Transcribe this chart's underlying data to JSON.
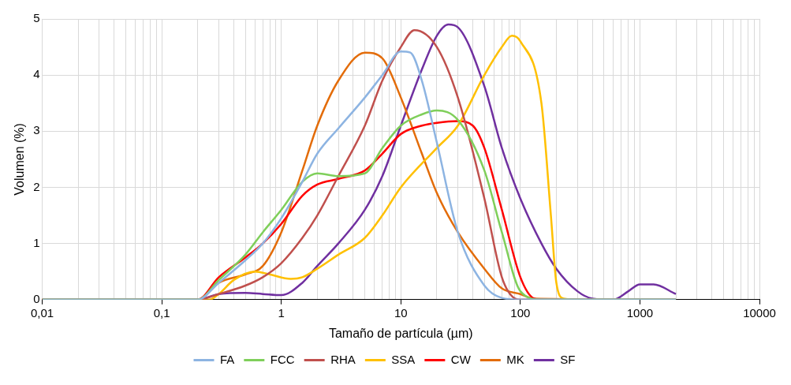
{
  "chart_data": {
    "type": "line",
    "xlabel": "Tamaño de partícula (µm)",
    "ylabel": "Volumen (%)",
    "log": "x",
    "xlim": [
      0.01,
      10000
    ],
    "xticks": [
      {
        "value": 0.01,
        "label": "0,01"
      },
      {
        "value": 0.02,
        "label": null
      },
      {
        "value": 0.03,
        "label": null
      },
      {
        "value": 0.04,
        "label": null
      },
      {
        "value": 0.05,
        "label": null
      },
      {
        "value": 0.06,
        "label": null
      },
      {
        "value": 0.07,
        "label": null
      },
      {
        "value": 0.08,
        "label": null
      },
      {
        "value": 0.09,
        "label": null
      },
      {
        "value": 0.1,
        "label": "0,1"
      },
      {
        "value": 0.2,
        "label": null
      },
      {
        "value": 0.3,
        "label": null
      },
      {
        "value": 0.4,
        "label": null
      },
      {
        "value": 0.5,
        "label": null
      },
      {
        "value": 0.6,
        "label": null
      },
      {
        "value": 0.7,
        "label": null
      },
      {
        "value": 0.8,
        "label": null
      },
      {
        "value": 0.9,
        "label": null
      },
      1,
      {
        "value": 2,
        "label": null
      },
      {
        "value": 3,
        "label": null
      },
      {
        "value": 4,
        "label": null
      },
      {
        "value": 5,
        "label": null
      },
      {
        "value": 6,
        "label": null
      },
      {
        "value": 7,
        "label": null
      },
      {
        "value": 8,
        "label": null
      },
      {
        "value": 9,
        "label": null
      },
      10,
      {
        "value": 20,
        "label": null
      },
      {
        "value": 30,
        "label": null
      },
      {
        "value": 40,
        "label": null
      },
      {
        "value": 50,
        "label": null
      },
      {
        "value": 60,
        "label": null
      },
      {
        "value": 70,
        "label": null
      },
      {
        "value": 80,
        "label": null
      },
      {
        "value": 90,
        "label": null
      },
      100,
      {
        "value": 200,
        "label": null
      },
      {
        "value": 300,
        "label": null
      },
      {
        "value": 400,
        "label": null
      },
      {
        "value": 500,
        "label": null
      },
      {
        "value": 600,
        "label": null
      },
      {
        "value": 700,
        "label": null
      },
      {
        "value": 800,
        "label": null
      },
      {
        "value": 900,
        "label": null
      },
      1000,
      {
        "value": 2000,
        "label": null
      },
      {
        "value": 3000,
        "label": null
      },
      {
        "value": 4000,
        "label": null
      },
      {
        "value": 5000,
        "label": null
      },
      {
        "value": 6000,
        "label": null
      },
      {
        "value": 7000,
        "label": null
      },
      {
        "value": 8000,
        "label": null
      },
      {
        "value": 9000,
        "label": null
      },
      10000
    ],
    "ylim": [
      0,
      5
    ],
    "yticks": [
      0,
      1,
      2,
      3,
      4,
      5
    ],
    "grid": true,
    "legend": "bottom",
    "marker": "none",
    "line_style": "solid",
    "series": [
      {
        "name": "FA",
        "color": "#8db4e2",
        "x": [
          0.01,
          0.2,
          0.3,
          0.5,
          0.7,
          1,
          1.5,
          2,
          3,
          5,
          7,
          10,
          12,
          15,
          20,
          30,
          50,
          70,
          100,
          2000
        ],
        "values": [
          0,
          0,
          0.3,
          0.7,
          1.0,
          1.45,
          2.1,
          2.6,
          3.05,
          3.6,
          4.0,
          4.42,
          4.4,
          3.9,
          2.8,
          1.2,
          0.25,
          0.03,
          0,
          0
        ]
      },
      {
        "name": "FCC",
        "color": "#7fcf5a",
        "x": [
          0.01,
          0.2,
          0.3,
          0.5,
          0.7,
          1,
          1.5,
          2,
          3,
          5,
          7,
          10,
          15,
          20,
          30,
          50,
          70,
          100,
          150,
          2000
        ],
        "values": [
          0,
          0,
          0.35,
          0.8,
          1.2,
          1.6,
          2.1,
          2.25,
          2.2,
          2.25,
          2.7,
          3.1,
          3.3,
          3.37,
          3.2,
          2.3,
          1.2,
          0.15,
          0,
          0
        ]
      },
      {
        "name": "RHA",
        "color": "#c0504d",
        "x": [
          0.01,
          0.2,
          0.3,
          0.5,
          0.7,
          1,
          1.5,
          2,
          3,
          5,
          7,
          10,
          13,
          20,
          30,
          50,
          70,
          90,
          100,
          2000
        ],
        "values": [
          0,
          0,
          0.1,
          0.25,
          0.4,
          0.65,
          1.1,
          1.5,
          2.2,
          3.1,
          3.9,
          4.5,
          4.8,
          4.5,
          3.6,
          1.8,
          0.4,
          0.02,
          0,
          0
        ]
      },
      {
        "name": "SSA",
        "color": "#ffc000",
        "x": [
          0.01,
          0.25,
          0.3,
          0.4,
          0.6,
          0.8,
          1.2,
          1.5,
          2,
          3,
          5,
          7,
          10,
          20,
          30,
          50,
          70,
          85,
          100,
          150,
          180,
          200,
          230,
          300,
          2000
        ],
        "values": [
          0,
          0,
          0.1,
          0.35,
          0.5,
          0.45,
          0.37,
          0.4,
          0.55,
          0.8,
          1.1,
          1.5,
          2.0,
          2.7,
          3.1,
          4.0,
          4.5,
          4.7,
          4.6,
          3.5,
          1.5,
          0.3,
          0.02,
          0,
          0
        ]
      },
      {
        "name": "CW",
        "color": "#ff0000",
        "x": [
          0.01,
          0.2,
          0.3,
          0.5,
          0.7,
          1,
          1.5,
          2,
          3,
          5,
          7,
          10,
          15,
          20,
          30,
          40,
          50,
          70,
          100,
          130,
          150,
          2000
        ],
        "values": [
          0,
          0,
          0.4,
          0.75,
          1.0,
          1.35,
          1.85,
          2.05,
          2.15,
          2.3,
          2.6,
          2.95,
          3.1,
          3.15,
          3.18,
          3.1,
          2.7,
          1.6,
          0.4,
          0.02,
          0,
          0
        ]
      },
      {
        "name": "MK",
        "color": "#e36c09",
        "x": [
          0.01,
          0.2,
          0.3,
          0.5,
          0.7,
          1,
          1.5,
          2,
          3,
          5,
          7,
          10,
          15,
          20,
          30,
          50,
          70,
          100,
          130,
          2000
        ],
        "values": [
          0,
          0,
          0.3,
          0.45,
          0.6,
          1.2,
          2.3,
          3.1,
          3.9,
          4.4,
          4.3,
          3.6,
          2.6,
          1.9,
          1.2,
          0.55,
          0.2,
          0.1,
          0.02,
          0
        ]
      },
      {
        "name": "SF",
        "color": "#7030a0",
        "x": [
          0.01,
          0.2,
          0.3,
          0.5,
          0.7,
          1,
          1.5,
          2,
          3,
          5,
          7,
          10,
          15,
          20,
          25,
          30,
          50,
          70,
          100,
          150,
          200,
          300,
          400,
          600,
          800,
          1000,
          1300,
          2000
        ],
        "values": [
          0,
          0,
          0.1,
          0.12,
          0.1,
          0.08,
          0.3,
          0.6,
          1.0,
          1.6,
          2.2,
          3.1,
          4.1,
          4.7,
          4.9,
          4.85,
          3.8,
          2.7,
          1.8,
          1.0,
          0.55,
          0.15,
          0.02,
          0,
          0.15,
          0.27,
          0.27,
          0.1
        ]
      }
    ]
  }
}
